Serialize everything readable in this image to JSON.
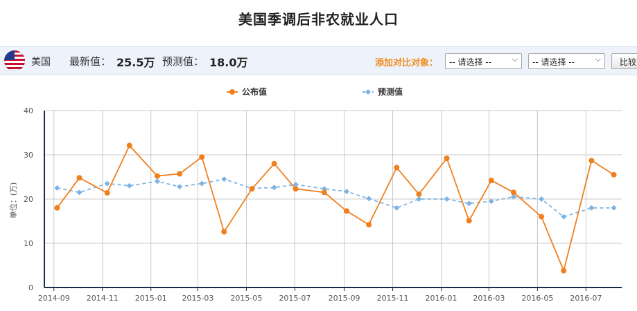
{
  "page_title": "美国季调后非农就业人口",
  "info_bar": {
    "country": "美国",
    "latest_label": "最新值：",
    "latest_value": "25.5万",
    "forecast_label": "预测值：",
    "forecast_value": "18.0万",
    "compare_label": "添加对比对象：",
    "select1": "-- 请选择 --",
    "select2": "-- 请选择 --",
    "compare_button": "比较"
  },
  "colors": {
    "published": "#f07f1d",
    "forecast": "#7db3e3",
    "axis": "#1b2a4a",
    "grid": "#c8c8c8",
    "y_label": "#4a8a4a"
  },
  "chart_data": {
    "type": "line",
    "ylabel": "单位：(万)",
    "ylim": [
      0,
      40
    ],
    "yticks": [
      0,
      10,
      20,
      30,
      40
    ],
    "xlim": [
      "2014-08-20",
      "2016-08-15"
    ],
    "x_ticks": [
      "2014-09",
      "2014-11",
      "2015-01",
      "2015-03",
      "2015-05",
      "2015-07",
      "2015-09",
      "2015-11",
      "2016-01",
      "2016-03",
      "2016-05",
      "2016-07"
    ],
    "x_tick_dates": [
      "2014-09-01",
      "2014-11-01",
      "2015-01-01",
      "2015-03-01",
      "2015-05-01",
      "2015-07-01",
      "2015-09-01",
      "2015-11-01",
      "2016-01-01",
      "2016-03-01",
      "2016-05-01",
      "2016-07-01"
    ],
    "x": [
      "2014-09-05",
      "2014-10-03",
      "2014-11-07",
      "2014-12-05",
      "2015-01-09",
      "2015-02-06",
      "2015-03-06",
      "2015-04-03",
      "2015-05-08",
      "2015-06-05",
      "2015-07-02",
      "2015-08-07",
      "2015-09-04",
      "2015-10-02",
      "2015-11-06",
      "2015-12-04",
      "2016-01-08",
      "2016-02-05",
      "2016-03-04",
      "2016-04-01",
      "2016-05-06",
      "2016-06-03",
      "2016-07-08",
      "2016-08-05"
    ],
    "legend": [
      "公布值",
      "预测值"
    ],
    "series": [
      {
        "name": "公布值",
        "style": "solid-circle",
        "values": [
          18.0,
          24.8,
          21.4,
          32.1,
          25.2,
          25.7,
          29.5,
          12.6,
          22.3,
          28.0,
          22.3,
          21.5,
          17.3,
          14.2,
          27.1,
          21.1,
          29.2,
          15.1,
          24.2,
          21.5,
          16.0,
          3.8,
          28.7,
          25.5
        ]
      },
      {
        "name": "预测值",
        "style": "dashed-diamond",
        "values": [
          22.5,
          21.5,
          23.5,
          23.0,
          24.0,
          22.8,
          23.5,
          24.5,
          22.4,
          22.6,
          23.3,
          22.3,
          21.7,
          20.1,
          18.0,
          20.0,
          20.0,
          19.0,
          19.5,
          20.5,
          20.0,
          16.0,
          18.0,
          18.0
        ]
      }
    ]
  }
}
